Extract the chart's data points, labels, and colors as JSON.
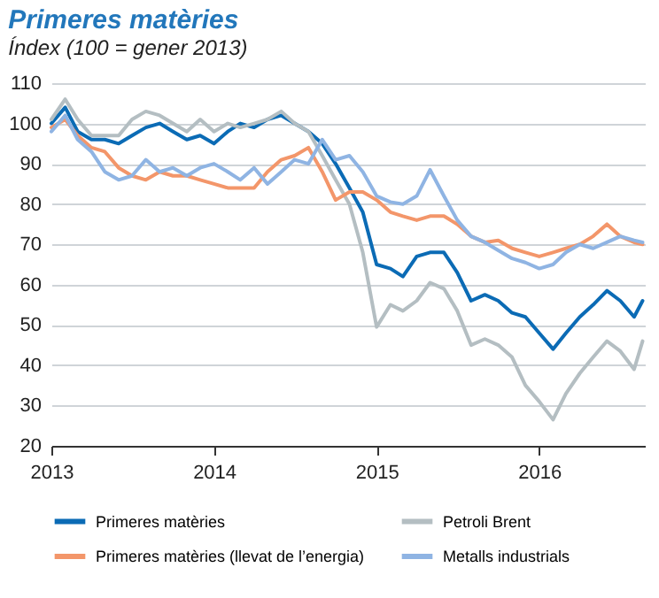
{
  "chart_data": {
    "type": "line",
    "title": "Primeres matèries",
    "subtitle": "Índex (100 = gener 2013)",
    "x": [
      "2013-01-01",
      "2013-02-01",
      "2013-03-01",
      "2013-04-01",
      "2013-05-01",
      "2013-06-01",
      "2013-07-01",
      "2013-08-01",
      "2013-09-01",
      "2013-10-01",
      "2013-11-01",
      "2013-12-01",
      "2014-01-01",
      "2014-02-01",
      "2014-03-01",
      "2014-04-01",
      "2014-05-01",
      "2014-06-01",
      "2014-07-01",
      "2014-08-01",
      "2014-09-01",
      "2014-10-01",
      "2014-11-01",
      "2014-12-01",
      "2015-01-01",
      "2015-02-01",
      "2015-03-01",
      "2015-04-01",
      "2015-05-01",
      "2015-06-01",
      "2015-07-01",
      "2015-08-01",
      "2015-09-01",
      "2015-10-01",
      "2015-11-01",
      "2015-12-01",
      "2016-01-01",
      "2016-02-01",
      "2016-03-01",
      "2016-04-01",
      "2016-05-01",
      "2016-06-01",
      "2016-07-01",
      "2016-08-01",
      "2016-08-20"
    ],
    "series": [
      {
        "name": "Primeres matèries",
        "color": "#0b6bb5",
        "values": [
          100,
          104,
          98,
          96,
          96,
          95,
          97,
          99,
          100,
          98,
          96,
          97,
          95,
          98,
          100,
          99,
          101,
          102,
          100,
          98,
          95,
          90,
          84,
          78,
          65,
          64,
          62,
          67,
          68,
          68,
          63,
          56,
          57.5,
          56,
          53,
          52,
          48,
          44,
          48,
          52,
          55,
          58.5,
          56,
          52,
          56
        ]
      },
      {
        "name": "Petroli Brent",
        "color": "#b4bec2",
        "values": [
          101,
          106,
          101,
          97,
          97,
          97,
          101,
          103,
          102,
          100,
          98,
          101,
          98,
          100,
          99,
          100,
          101,
          103,
          100,
          98,
          92,
          86,
          80,
          68,
          49.5,
          55,
          53.5,
          56,
          60.5,
          59,
          53.5,
          45,
          46.5,
          45,
          42,
          35,
          31,
          26.5,
          33,
          38,
          42,
          46,
          43.5,
          39,
          46
        ]
      },
      {
        "name": "Primeres matèries (llevat de l’energia)",
        "color": "#f3966a",
        "values": [
          99,
          101,
          97,
          94,
          93,
          89,
          87,
          86,
          88,
          87,
          87,
          86,
          85,
          84,
          84,
          84,
          88,
          91,
          92,
          94,
          88,
          81,
          83,
          83,
          81,
          78,
          77,
          76,
          77,
          77,
          75,
          72,
          70.5,
          71,
          69,
          68,
          67,
          68,
          69,
          70,
          72,
          75,
          72,
          70.5,
          70
        ]
      },
      {
        "name": "Metalls industrials",
        "color": "#8fb4e3",
        "values": [
          98,
          102,
          96,
          93,
          88,
          86,
          87,
          91,
          88,
          89,
          87,
          89,
          90,
          88,
          86,
          89,
          85,
          88,
          91,
          90,
          96,
          91,
          92,
          88,
          82,
          80.5,
          80,
          82,
          88.5,
          82,
          76,
          72,
          70.5,
          68.5,
          66.5,
          65.5,
          64,
          65,
          68,
          70,
          69,
          70.5,
          72,
          71,
          70.5
        ]
      }
    ],
    "xlim": [
      "2013-01-01",
      "2016-08-25"
    ],
    "xticks": [
      "2013",
      "2014",
      "2015",
      "2016"
    ],
    "ylim": [
      20,
      110
    ],
    "yticks": [
      20,
      30,
      40,
      50,
      60,
      70,
      80,
      90,
      100,
      110
    ],
    "grid": "y",
    "legend": "bottom",
    "marker": "none",
    "line_style": "solid"
  }
}
